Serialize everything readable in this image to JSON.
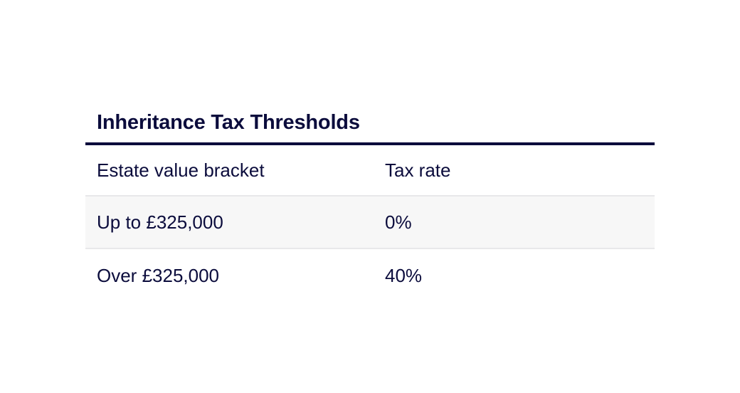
{
  "table": {
    "title": "Inheritance Tax Thresholds",
    "headers": [
      "Estate value bracket",
      "Tax rate"
    ],
    "rows": [
      [
        "Up to £325,000",
        "0%"
      ],
      [
        "Over £325,000",
        "40%"
      ]
    ]
  },
  "colors": {
    "text": "#0b0c3c",
    "row_shade": "#f7f7f7",
    "divider": "#e8e8ea"
  }
}
